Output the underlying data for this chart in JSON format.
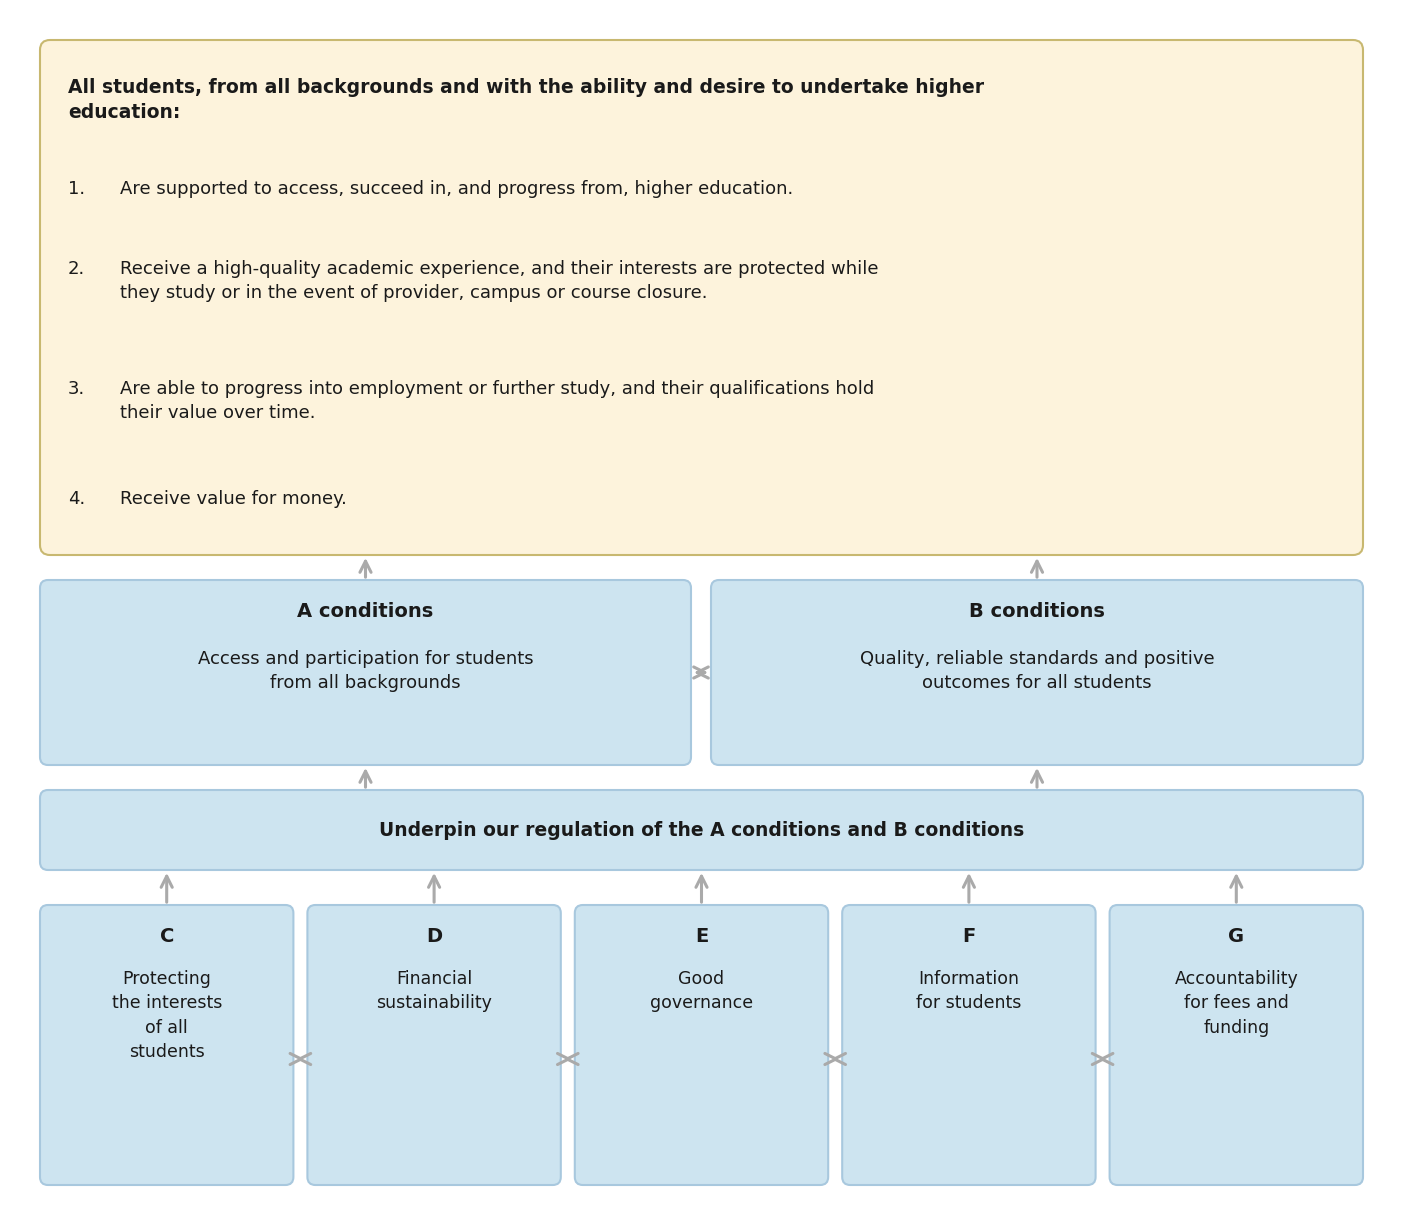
{
  "fig_width": 14.03,
  "fig_height": 12.25,
  "dpi": 100,
  "bg_color": "#ffffff",
  "top_box": {
    "bg_color": "#fdf3dc",
    "border_color": "#c8b870",
    "title": "All students, from all backgrounds and with the ability and desire to undertake higher\neducation:",
    "item1": "Are supported to access, succeed in, and progress from, higher education.",
    "item2_line1": "Receive a high-quality academic experience, and their interests are protected while",
    "item2_line2": "they study or in the event of provider, campus or course closure.",
    "item3_line1": "Are able to progress into employment or further study, and their qualifications hold",
    "item3_line2": "their value over time.",
    "item4": "Receive value for money."
  },
  "box_color": "#cde4f0",
  "box_border": "#a8c8de",
  "arrow_color": "#aaaaaa",
  "arrow_lw": 2.2,
  "text_color": "#1a1a1a",
  "a_title": "A conditions",
  "a_body": "Access and participation for students\nfrom all backgrounds",
  "b_title": "B conditions",
  "b_body": "Quality, reliable standards and positive\noutcomes for all students",
  "underpin": "Underpin our regulation of the A conditions and B conditions",
  "boxes": [
    {
      "letter": "C",
      "body": "Protecting\nthe interests\nof all\nstudents"
    },
    {
      "letter": "D",
      "body": "Financial\nsustainability"
    },
    {
      "letter": "E",
      "body": "Good\ngovernance"
    },
    {
      "letter": "F",
      "body": "Information\nfor students"
    },
    {
      "letter": "G",
      "body": "Accountability\nfor fees and\nfunding"
    }
  ]
}
